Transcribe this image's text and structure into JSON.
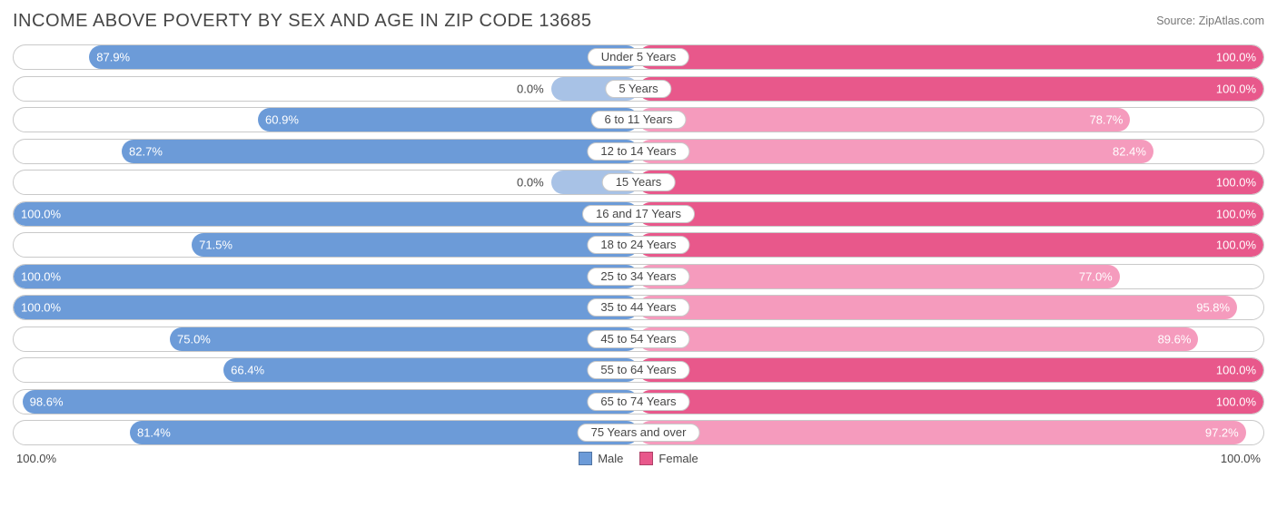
{
  "title": "INCOME ABOVE POVERTY BY SEX AND AGE IN ZIP CODE 13685",
  "source": "Source: ZipAtlas.com",
  "axis": {
    "left": "100.0%",
    "right": "100.0%"
  },
  "legend": {
    "male": {
      "label": "Male",
      "color": "#6c9bd8"
    },
    "female": {
      "label": "Female",
      "color": "#e8588b"
    }
  },
  "chart": {
    "male_color": "#6c9bd8",
    "male_color_zero": "#a8c2e6",
    "female_color": "#e8588b",
    "female_color_sub": "#f59bbd",
    "row_border": "#c9c9c9",
    "zero_bar_width_pct": 14,
    "rows": [
      {
        "category": "Under 5 Years",
        "male": 87.9,
        "male_label": "87.9%",
        "male_zero": false,
        "female": 100.0,
        "female_label": "100.0%"
      },
      {
        "category": "5 Years",
        "male": 0.0,
        "male_label": "0.0%",
        "male_zero": true,
        "female": 100.0,
        "female_label": "100.0%"
      },
      {
        "category": "6 to 11 Years",
        "male": 60.9,
        "male_label": "60.9%",
        "male_zero": false,
        "female": 78.7,
        "female_label": "78.7%"
      },
      {
        "category": "12 to 14 Years",
        "male": 82.7,
        "male_label": "82.7%",
        "male_zero": false,
        "female": 82.4,
        "female_label": "82.4%"
      },
      {
        "category": "15 Years",
        "male": 0.0,
        "male_label": "0.0%",
        "male_zero": true,
        "female": 100.0,
        "female_label": "100.0%"
      },
      {
        "category": "16 and 17 Years",
        "male": 100.0,
        "male_label": "100.0%",
        "male_zero": false,
        "female": 100.0,
        "female_label": "100.0%"
      },
      {
        "category": "18 to 24 Years",
        "male": 71.5,
        "male_label": "71.5%",
        "male_zero": false,
        "female": 100.0,
        "female_label": "100.0%"
      },
      {
        "category": "25 to 34 Years",
        "male": 100.0,
        "male_label": "100.0%",
        "male_zero": false,
        "female": 77.0,
        "female_label": "77.0%"
      },
      {
        "category": "35 to 44 Years",
        "male": 100.0,
        "male_label": "100.0%",
        "male_zero": false,
        "female": 95.8,
        "female_label": "95.8%"
      },
      {
        "category": "45 to 54 Years",
        "male": 75.0,
        "male_label": "75.0%",
        "male_zero": false,
        "female": 89.6,
        "female_label": "89.6%"
      },
      {
        "category": "55 to 64 Years",
        "male": 66.4,
        "male_label": "66.4%",
        "male_zero": false,
        "female": 100.0,
        "female_label": "100.0%"
      },
      {
        "category": "65 to 74 Years",
        "male": 98.6,
        "male_label": "98.6%",
        "male_zero": false,
        "female": 100.0,
        "female_label": "100.0%"
      },
      {
        "category": "75 Years and over",
        "male": 81.4,
        "male_label": "81.4%",
        "male_zero": false,
        "female": 97.2,
        "female_label": "97.2%"
      }
    ]
  }
}
